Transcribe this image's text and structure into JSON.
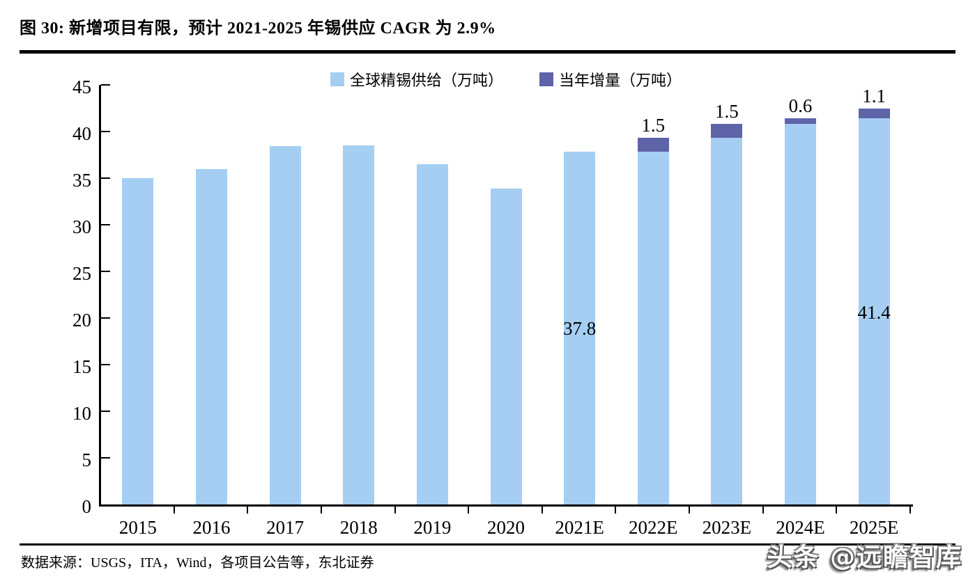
{
  "title": "图 30: 新增项目有限，预计 2021-2025 年锡供应 CAGR 为 2.9%",
  "source": "数据来源：USGS，ITA，Wind，各项目公告等，东北证券",
  "watermark": "头条 @远瞻智库",
  "colors": {
    "supply_bar": "#A5CEF2",
    "increment_bar": "#5F63A8",
    "axis": "#000000",
    "background": "#ffffff"
  },
  "chart_data": {
    "type": "bar",
    "stacked": true,
    "title": "",
    "xlabel": "",
    "ylabel": "",
    "categories": [
      "2015",
      "2016",
      "2017",
      "2018",
      "2019",
      "2020",
      "2021E",
      "2022E",
      "2023E",
      "2024E",
      "2025E"
    ],
    "series": [
      {
        "name": "全球精锡供给（万吨）",
        "color": "#A5CEF2",
        "values": [
          35.0,
          36.0,
          38.4,
          38.5,
          36.5,
          33.9,
          37.8,
          37.8,
          39.3,
          40.8,
          41.4
        ]
      },
      {
        "name": "当年增量（万吨）",
        "color": "#5F63A8",
        "values": [
          0,
          0,
          0,
          0,
          0,
          0,
          0,
          1.5,
          1.5,
          0.6,
          1.1
        ]
      }
    ],
    "totals": [
      35.0,
      36.0,
      38.4,
      38.5,
      36.5,
      33.9,
      37.8,
      39.3,
      40.8,
      41.4,
      42.5
    ],
    "top_labels": [
      "",
      "",
      "",
      "",
      "",
      "",
      "",
      "1.5",
      "1.5",
      "0.6",
      "1.1"
    ],
    "inner_labels": [
      "",
      "",
      "",
      "",
      "",
      "",
      "37.8",
      "",
      "",
      "",
      "41.4"
    ],
    "ylim": [
      0,
      45
    ],
    "y_ticks": [
      0,
      5,
      10,
      15,
      20,
      25,
      30,
      35,
      40,
      45
    ],
    "grid": false,
    "legend_position": "top-center"
  }
}
